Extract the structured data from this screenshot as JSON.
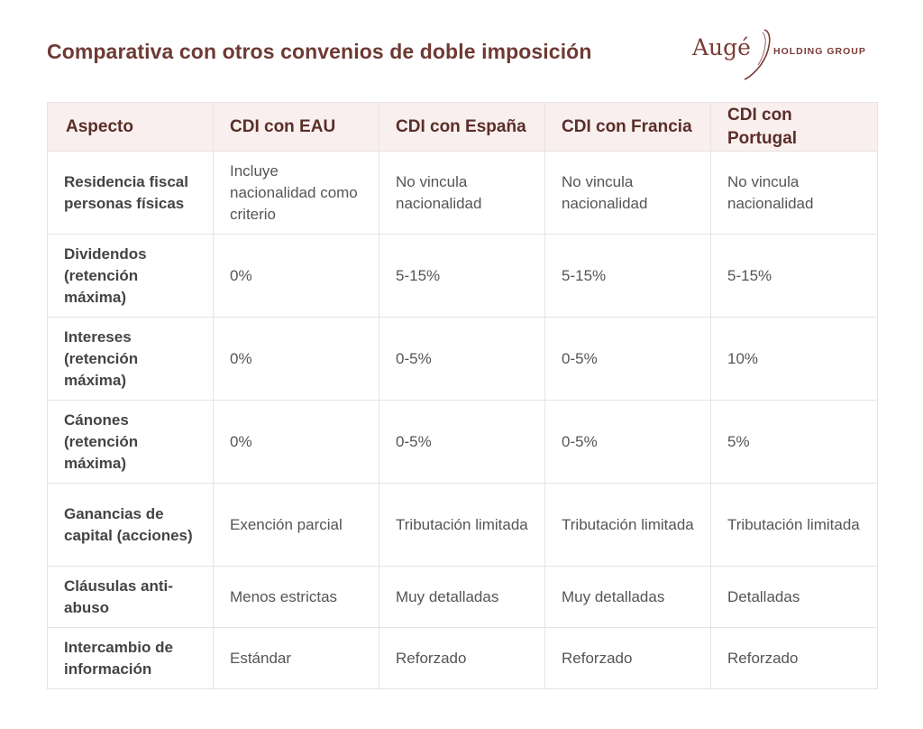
{
  "title": "Comparativa con otros convenios de doble imposición",
  "logo": {
    "brand": "Augé",
    "tagline": "HOLDING GROUP",
    "brand_color": "#7a3b35"
  },
  "colors": {
    "title": "#6e3a33",
    "header_bg": "#f9efee",
    "header_text": "#5a2e29",
    "border": "#e7e3e1"
  },
  "table": {
    "headers": [
      "Aspecto",
      "CDI con EAU",
      "CDI con España",
      "CDI con Francia",
      "CDI con Portugal"
    ],
    "rows": [
      {
        "aspect": "Residencia fiscal personas físicas",
        "eau": "Incluye nacionalidad como criterio",
        "espana": "No vincula nacionalidad",
        "francia": "No vincula nacionalidad",
        "portugal": "No vincula nacionalidad"
      },
      {
        "aspect": "Dividendos (retención máxima)",
        "eau": "0%",
        "espana": "5-15%",
        "francia": "5-15%",
        "portugal": "5-15%"
      },
      {
        "aspect": "Intereses (retención máxima)",
        "eau": "0%",
        "espana": "0-5%",
        "francia": "0-5%",
        "portugal": "10%"
      },
      {
        "aspect": "Cánones (retención máxima)",
        "eau": "0%",
        "espana": "0-5%",
        "francia": "0-5%",
        "portugal": "5%"
      },
      {
        "aspect": "Ganancias de capital (acciones)",
        "eau": "Exención parcial",
        "espana": "Tributación limitada",
        "francia": "Tributación limitada",
        "portugal": "Tributación limitada"
      },
      {
        "aspect": "Cláusulas anti-abuso",
        "eau": "Menos estrictas",
        "espana": "Muy detalladas",
        "francia": "Muy detalladas",
        "portugal": "Detalladas"
      },
      {
        "aspect": "Intercambio de información",
        "eau": "Estándar",
        "espana": "Reforzado",
        "francia": "Reforzado",
        "portugal": "Reforzado"
      }
    ]
  }
}
